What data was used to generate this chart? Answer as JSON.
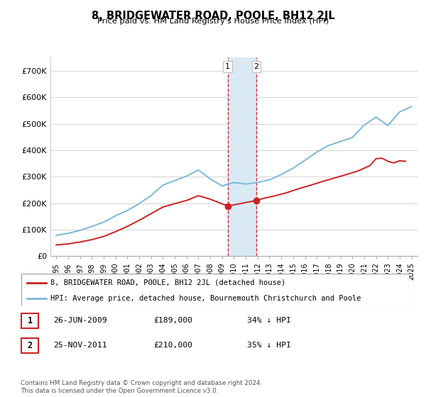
{
  "title": "8, BRIDGEWATER ROAD, POOLE, BH12 2JL",
  "subtitle": "Price paid vs. HM Land Registry's House Price Index (HPI)",
  "legend_line1": "8, BRIDGEWATER ROAD, POOLE, BH12 2JL (detached house)",
  "legend_line2": "HPI: Average price, detached house, Bournemouth Christchurch and Poole",
  "transaction1_label": "1",
  "transaction1_date": "26-JUN-2009",
  "transaction1_price": "£189,000",
  "transaction1_hpi": "34% ↓ HPI",
  "transaction2_label": "2",
  "transaction2_date": "25-NOV-2011",
  "transaction2_price": "£210,000",
  "transaction2_hpi": "35% ↓ HPI",
  "footnote": "Contains HM Land Registry data © Crown copyright and database right 2024.\nThis data is licensed under the Open Government Licence v3.0.",
  "hpi_color": "#7ab8d9",
  "price_color": "#cc2222",
  "marker_color": "#cc2222",
  "shading_color": "#daeaf5",
  "ylim": [
    0,
    750000
  ],
  "yticks": [
    0,
    100000,
    200000,
    300000,
    400000,
    500000,
    600000,
    700000
  ],
  "ytick_labels": [
    "£0",
    "£100K",
    "£200K",
    "£300K",
    "£400K",
    "£500K",
    "£600K",
    "£700K"
  ],
  "hpi_years": [
    1995,
    1996,
    1997,
    1998,
    1999,
    2000,
    2001,
    2002,
    2003,
    2004,
    2005,
    2006,
    2007,
    2008,
    2009,
    2010,
    2011,
    2012,
    2013,
    2014,
    2015,
    2016,
    2017,
    2018,
    2019,
    2020,
    2021,
    2022,
    2023,
    2024,
    2025
  ],
  "hpi_values": [
    78000,
    86000,
    97000,
    112000,
    128000,
    152000,
    172000,
    198000,
    228000,
    268000,
    285000,
    302000,
    325000,
    292000,
    265000,
    278000,
    272000,
    278000,
    288000,
    308000,
    332000,
    362000,
    393000,
    418000,
    433000,
    448000,
    495000,
    525000,
    493000,
    545000,
    565000
  ],
  "price_years": [
    1995.0,
    1996.0,
    1997.0,
    1998.0,
    1999.0,
    2000.0,
    2001.0,
    2002.0,
    2003.0,
    2004.0,
    2005.0,
    2006.0,
    2007.0,
    2008.0,
    2009.48,
    2011.9,
    2012.5,
    2013.5,
    2014.5,
    2015.5,
    2016.5,
    2017.5,
    2018.5,
    2019.5,
    2020.5,
    2021.5,
    2022.0,
    2022.5,
    2023.0,
    2023.5,
    2024.0,
    2024.5
  ],
  "price_values": [
    42000,
    46000,
    53000,
    62000,
    74000,
    92000,
    112000,
    135000,
    160000,
    185000,
    198000,
    210000,
    228000,
    215000,
    189000,
    210000,
    218000,
    228000,
    240000,
    255000,
    268000,
    282000,
    295000,
    308000,
    322000,
    342000,
    368000,
    370000,
    358000,
    352000,
    360000,
    358000
  ],
  "transaction1_x": 2009.48,
  "transaction1_y": 189000,
  "transaction2_x": 2011.9,
  "transaction2_y": 210000,
  "xlim_left": 1994.5,
  "xlim_right": 2025.5,
  "xtick_years": [
    1995,
    1996,
    1997,
    1998,
    1999,
    2000,
    2001,
    2002,
    2003,
    2004,
    2005,
    2006,
    2007,
    2008,
    2009,
    2010,
    2011,
    2012,
    2013,
    2014,
    2015,
    2016,
    2017,
    2018,
    2019,
    2020,
    2021,
    2022,
    2023,
    2024,
    2025
  ],
  "shading_x1": 2009.48,
  "shading_x2": 2011.9
}
